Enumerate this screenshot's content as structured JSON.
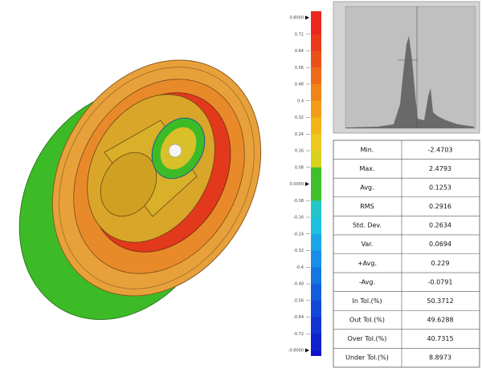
{
  "scale": {
    "labels": [
      "0.8000",
      "0.72",
      "0.64",
      "0.56",
      "0.48",
      "0.4",
      "0.32",
      "0.24",
      "0.16",
      "0.08",
      "0.0000",
      "-0.08",
      "-0.16",
      "-0.24",
      "-0.32",
      "-0.4",
      "-0.48",
      "-0.56",
      "-0.64",
      "-0.72",
      "-0.8000"
    ],
    "segment_colors": [
      "#e8281c",
      "#ea3a1a",
      "#ec5019",
      "#ee6a18",
      "#f08417",
      "#f29c17",
      "#f3b41a",
      "#efc81f",
      "#d8d21f",
      "#3fbf2a",
      "#3fbf2a",
      "#22c6c8",
      "#1ec0e0",
      "#1aa6e6",
      "#188ee6",
      "#1676e2",
      "#145ede",
      "#1248d8",
      "#1034d2",
      "#0e22cc"
    ],
    "top_color": "#e8281c",
    "bottom_color": "#1010d0"
  },
  "table": {
    "rows": [
      [
        "Min.",
        "-2.4703"
      ],
      [
        "Max.",
        "2.4793"
      ],
      [
        "Avg.",
        "0.1253"
      ],
      [
        "RMS",
        "0.2916"
      ],
      [
        "Std. Dev.",
        "0.2634"
      ],
      [
        "Var.",
        "0.0694"
      ],
      [
        "+Avg.",
        "0.229"
      ],
      [
        "-Avg.",
        "-0.0791"
      ],
      [
        "In Tol.(%)",
        "50.3712"
      ],
      [
        "Out Tol.(%)",
        "49.6288"
      ],
      [
        "Over Tol.(%)",
        "40.7315"
      ],
      [
        "Under Tol.(%)",
        "8.8973"
      ]
    ]
  }
}
